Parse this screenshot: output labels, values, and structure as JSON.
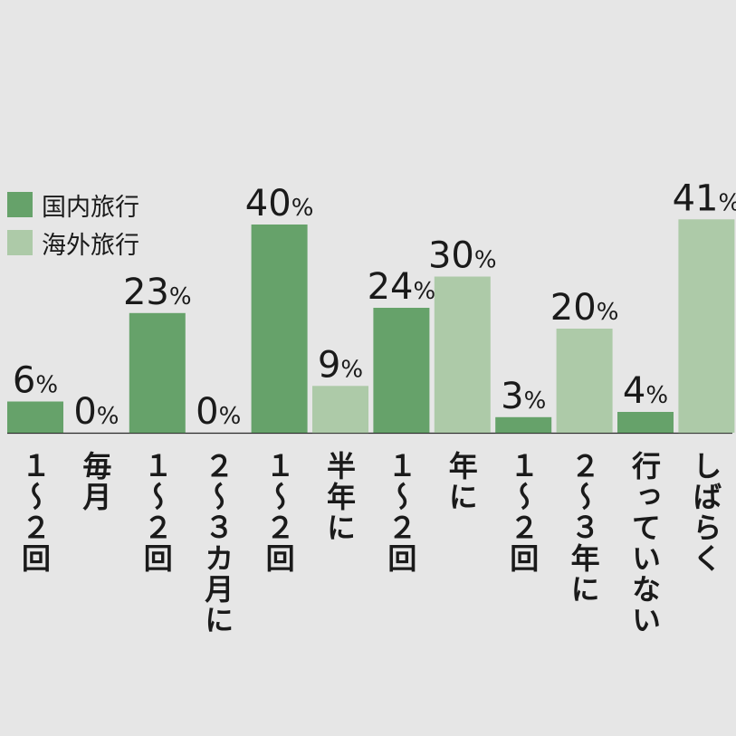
{
  "chart_data": {
    "type": "bar",
    "categories": [
      {
        "domestic": "１〜２回",
        "overseas": "毎月"
      },
      {
        "domestic": "１〜２回",
        "overseas": "２〜３カ月に"
      },
      {
        "domestic": "１〜２回",
        "overseas": "半年に"
      },
      {
        "domestic": "１〜２回",
        "overseas": "年に"
      },
      {
        "domestic": "１〜２回",
        "overseas": "２〜３年に"
      },
      {
        "domestic": "",
        "overseas": "行っていない"
      },
      {
        "domestic": "",
        "overseas": "しばらく"
      }
    ],
    "bars": [
      {
        "label": "１〜２回",
        "series": "domestic",
        "value": 6
      },
      {
        "label": "毎月",
        "series": "overseas",
        "value": 0
      },
      {
        "label": "１〜２回",
        "series": "domestic",
        "value": 23
      },
      {
        "label": "２〜３カ月に",
        "series": "overseas",
        "value": 0
      },
      {
        "label": "１〜２回",
        "series": "domestic",
        "value": 40
      },
      {
        "label": "半年に",
        "series": "overseas",
        "value": 9
      },
      {
        "label": "１〜２回",
        "series": "domestic",
        "value": 24
      },
      {
        "label": "年に",
        "series": "overseas",
        "value": 30
      },
      {
        "label": "１〜２回",
        "series": "domestic",
        "value": 3
      },
      {
        "label": "２〜３年に",
        "series": "overseas",
        "value": 20
      },
      {
        "label": "行っていない",
        "series": "domestic",
        "value": 4
      },
      {
        "label": "しばらく",
        "series": "overseas",
        "value": 41
      }
    ],
    "series": [
      {
        "key": "domestic",
        "name": "国内旅行",
        "color": "#66a26a"
      },
      {
        "key": "overseas",
        "name": "海外旅行",
        "color": "#adcaa8"
      }
    ],
    "unit": "%",
    "ylim": [
      0,
      45
    ],
    "grid": false,
    "legend_position": "top-left"
  }
}
